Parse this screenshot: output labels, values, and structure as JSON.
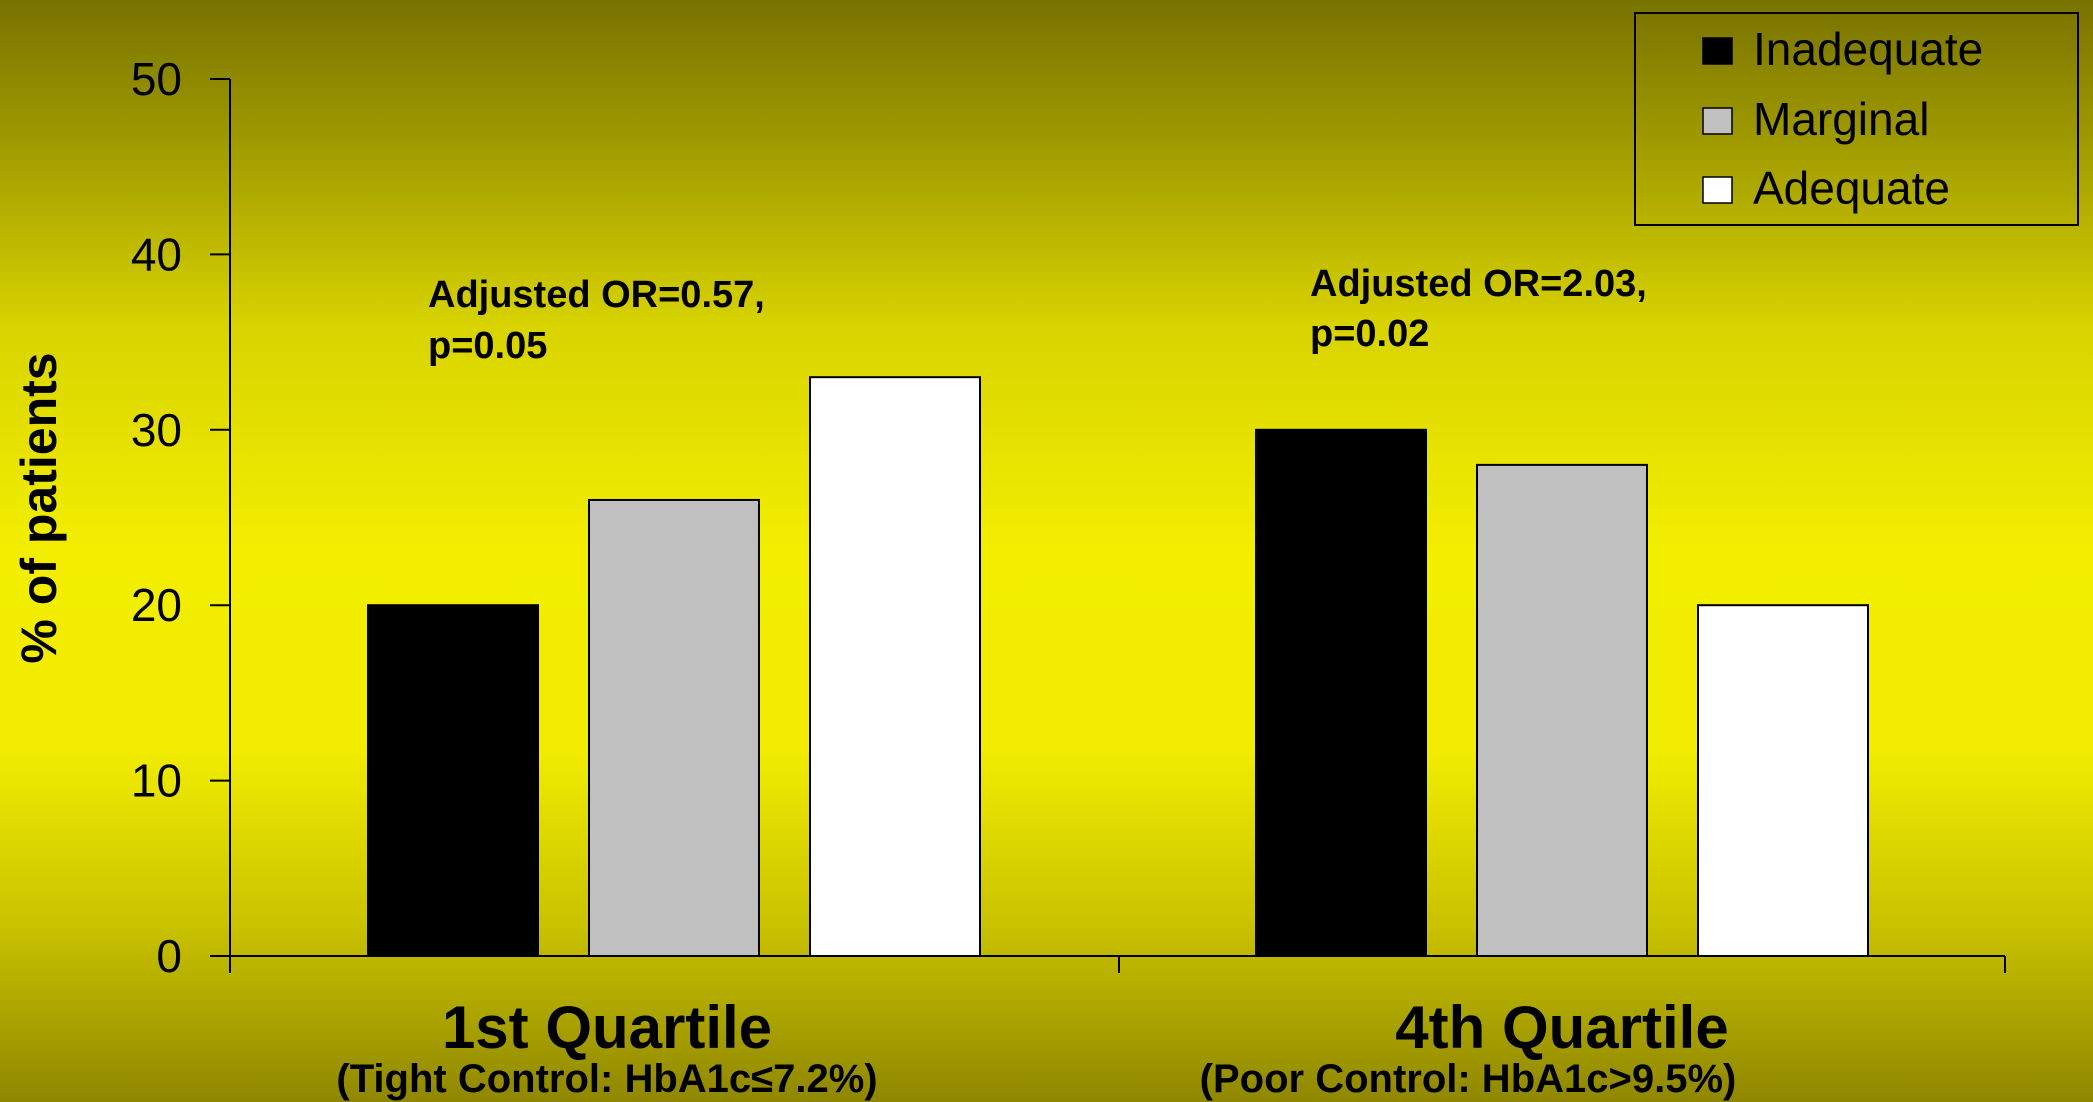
{
  "chart_data": {
    "type": "bar",
    "categories": [
      "1st Quartile",
      "4th Quartile"
    ],
    "category_sublabels": [
      "(Tight Control: HbA1c≤7.2%)",
      "(Poor Control: HbA1c>9.5%)"
    ],
    "series": [
      {
        "name": "Inadequate",
        "values": [
          20,
          30
        ],
        "color": "#000000"
      },
      {
        "name": "Marginal",
        "values": [
          26,
          28
        ],
        "color": "#c0c0c0"
      },
      {
        "name": "Adequate",
        "values": [
          33,
          20
        ],
        "color": "#ffffff"
      }
    ],
    "ylabel": "% of patients",
    "ylim": [
      0,
      50
    ],
    "yticks": [
      "0",
      "10",
      "20",
      "30",
      "40",
      "50"
    ],
    "legend_position": "top-right",
    "annotations": [
      {
        "line1": "Adjusted OR=0.57,",
        "line2": "p=0.05"
      },
      {
        "line1": "Adjusted OR=2.03,",
        "line2": "p=0.02"
      }
    ],
    "grid": false
  }
}
